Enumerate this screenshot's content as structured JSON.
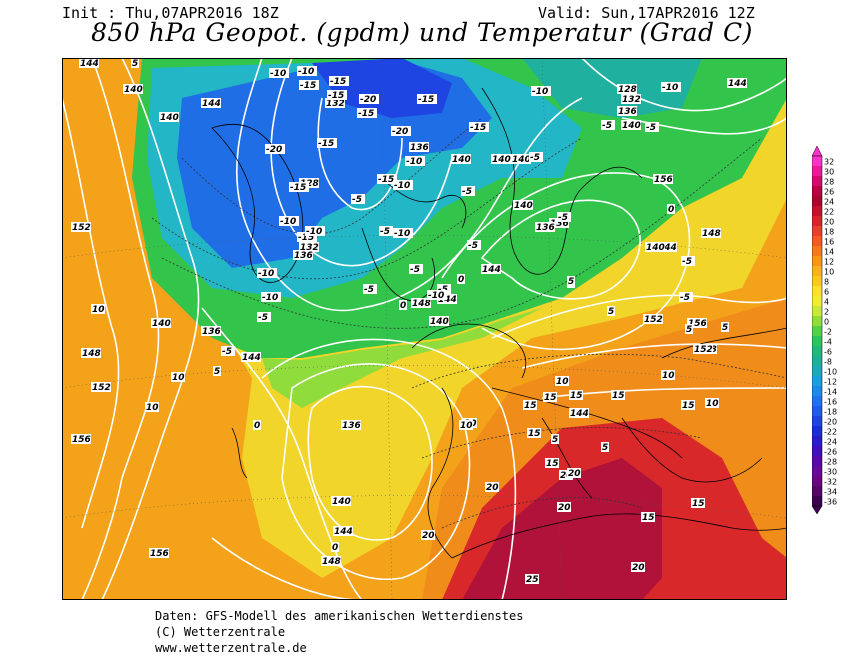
{
  "header": {
    "init": "Init : Thu,07APR2016 18Z",
    "valid": "Valid: Sun,17APR2016 12Z",
    "title": "850 hPa Geopot. (gpdm) und Temperatur (Grad C)"
  },
  "legend": {
    "values": [
      "32",
      "30",
      "28",
      "26",
      "24",
      "22",
      "20",
      "18",
      "16",
      "14",
      "12",
      "10",
      "8",
      "6",
      "4",
      "2",
      "0",
      "-2",
      "-4",
      "-6",
      "-8",
      "-10",
      "-12",
      "-14",
      "-16",
      "-18",
      "-20",
      "-22",
      "-24",
      "-26",
      "-28",
      "-30",
      "-32",
      "-34",
      "-36"
    ],
    "colors": [
      "#ff33cc",
      "#ee1a9a",
      "#d40a6e",
      "#bb0044",
      "#a8062e",
      "#c4102a",
      "#d8232a",
      "#e6402a",
      "#ef5b22",
      "#f4781c",
      "#f79616",
      "#f9b21a",
      "#fbc81e",
      "#fde028",
      "#f2ec2c",
      "#c8e83a",
      "#8fdc3c",
      "#55d04a",
      "#2dc35e",
      "#22b87a",
      "#20b09a",
      "#1fa8bc",
      "#1aa0da",
      "#1e8ae8",
      "#2272ec",
      "#1f5cec",
      "#1e44e2",
      "#1a2ed8",
      "#2a1cc8",
      "#4010b8",
      "#5808a8",
      "#680898",
      "#6a0680",
      "#560668",
      "#3c0450"
    ]
  },
  "map": {
    "geopotential_labels": [
      "144",
      "140",
      "144",
      "140",
      "132",
      "128",
      "132",
      "136",
      "136",
      "140",
      "128",
      "132",
      "136",
      "140",
      "140",
      "136",
      "140",
      "144",
      "152",
      "140",
      "136",
      "144",
      "148",
      "152",
      "156",
      "136",
      "140",
      "144",
      "148",
      "156",
      "152",
      "156",
      "144",
      "148",
      "140",
      "144",
      "148",
      "152",
      "156",
      "144",
      "140",
      "140",
      "136",
      "144",
      "148"
    ],
    "temperature_labels": [
      "0",
      "-10",
      "-10",
      "-15",
      "-15",
      "-15",
      "-20",
      "-15",
      "-20",
      "-15",
      "-15",
      "-10",
      "-15",
      "-20",
      "-10",
      "-15",
      "-10",
      "-5",
      "-5",
      "-5",
      "-10",
      "-15",
      "-10",
      "-5",
      "-15",
      "-10",
      "-10",
      "-10",
      "-5",
      "-5",
      "0",
      "-5",
      "-5",
      "-5",
      "0",
      "-10",
      "-5",
      "-5",
      "0",
      "-5",
      "-5",
      "0",
      "-5",
      "5",
      "10",
      "10",
      "10",
      "5",
      "5",
      "5",
      "10",
      "10",
      "15",
      "10",
      "10",
      "15",
      "15",
      "15",
      "15",
      "15",
      "15",
      "20",
      "20",
      "20",
      "20",
      "20",
      "20",
      "25",
      "15",
      "15",
      "10",
      "5",
      "5",
      "5",
      "0",
      "0",
      "0",
      "-10",
      "-5",
      "5"
    ]
  },
  "footer": {
    "line1": "Daten: GFS-Modell des amerikanischen Wetterdienstes",
    "line2": "(C) Wetterzentrale",
    "line3": "www.wetterzentrale.de"
  }
}
